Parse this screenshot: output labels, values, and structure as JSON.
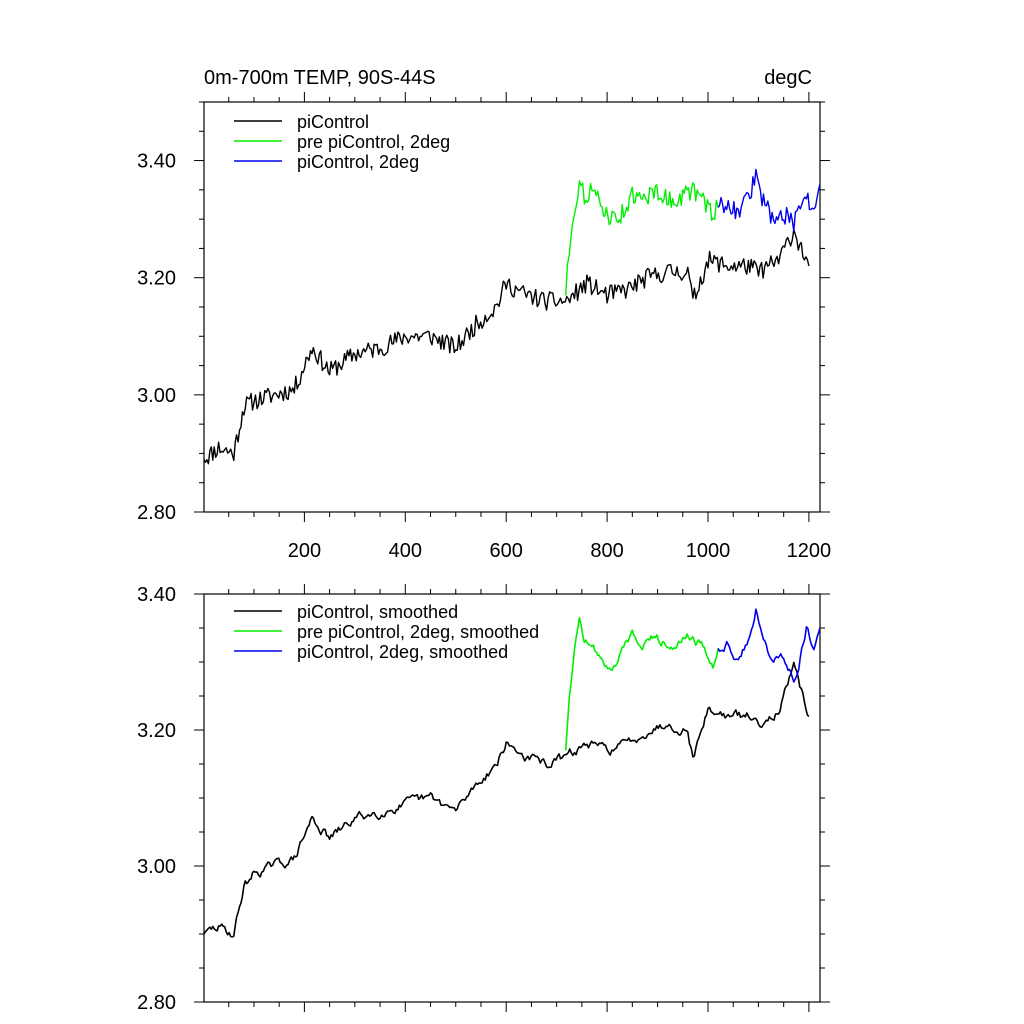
{
  "chart_data": [
    {
      "type": "line",
      "title_left": "0m-700m TEMP, 90S-44S",
      "title_right": "degC",
      "xlim": [
        1,
        1222
      ],
      "ylim": [
        2.8,
        3.5
      ],
      "xticks": [
        200,
        400,
        600,
        800,
        1000,
        1200
      ],
      "xtick_labels": [
        "200",
        "400",
        "600",
        "800",
        "1000",
        "1200"
      ],
      "yticks": [
        2.8,
        3.0,
        3.2,
        3.4
      ],
      "ytick_labels": [
        "2.80",
        "3.00",
        "3.20",
        "3.40"
      ],
      "legend_position": "top-left",
      "series": [
        {
          "name": "piControl",
          "color": "#000000",
          "x": [
            1,
            30,
            60,
            80,
            100,
            140,
            180,
            215,
            250,
            300,
            350,
            400,
            450,
            500,
            540,
            580,
            600,
            640,
            680,
            720,
            760,
            800,
            840,
            880,
            920,
            960,
            970,
            1000,
            1040,
            1080,
            1100,
            1140,
            1170,
            1200
          ],
          "values": [
            2.89,
            2.91,
            2.9,
            2.98,
            2.99,
            3.0,
            3.01,
            3.08,
            3.04,
            3.07,
            3.08,
            3.1,
            3.1,
            3.08,
            3.12,
            3.15,
            3.19,
            3.17,
            3.16,
            3.16,
            3.19,
            3.17,
            3.18,
            3.2,
            3.21,
            3.21,
            3.16,
            3.23,
            3.22,
            3.22,
            3.21,
            3.23,
            3.28,
            3.22
          ]
        },
        {
          "name": "pre piControl, 2deg",
          "color": "#00ee00",
          "x": [
            718,
            725,
            735,
            745,
            755,
            770,
            790,
            810,
            830,
            850,
            870,
            890,
            910,
            930,
            950,
            970,
            990,
            1010,
            1020
          ],
          "values": [
            3.17,
            3.25,
            3.32,
            3.36,
            3.34,
            3.35,
            3.32,
            3.3,
            3.31,
            3.34,
            3.33,
            3.35,
            3.34,
            3.33,
            3.34,
            3.35,
            3.33,
            3.31,
            3.32
          ]
        },
        {
          "name": "piControl, 2deg",
          "color": "#0000ee",
          "x": [
            1020,
            1040,
            1060,
            1080,
            1095,
            1110,
            1130,
            1150,
            1170,
            1180,
            1195,
            1210,
            1222
          ],
          "values": [
            3.32,
            3.33,
            3.31,
            3.34,
            3.37,
            3.33,
            3.3,
            3.31,
            3.29,
            3.31,
            3.34,
            3.31,
            3.36
          ]
        }
      ]
    },
    {
      "type": "line",
      "xlim": [
        1,
        1222
      ],
      "ylim": [
        2.8,
        3.4
      ],
      "xticks": [
        200,
        400,
        600,
        800,
        1000,
        1200
      ],
      "yticks": [
        2.8,
        3.0,
        3.2,
        3.4
      ],
      "ytick_labels": [
        "2.80",
        "3.00",
        "3.20",
        "3.40"
      ],
      "legend_position": "top-left",
      "series": [
        {
          "name": "piControl, smoothed",
          "color": "#000000",
          "x": [
            1,
            30,
            60,
            80,
            100,
            140,
            180,
            215,
            250,
            300,
            350,
            400,
            450,
            500,
            540,
            580,
            600,
            640,
            680,
            720,
            760,
            800,
            840,
            880,
            920,
            960,
            970,
            1000,
            1040,
            1080,
            1100,
            1140,
            1170,
            1200
          ],
          "values": [
            2.9,
            2.91,
            2.9,
            2.97,
            2.99,
            3.0,
            3.01,
            3.07,
            3.04,
            3.07,
            3.08,
            3.09,
            3.1,
            3.08,
            3.12,
            3.15,
            3.18,
            3.16,
            3.15,
            3.16,
            3.18,
            3.17,
            3.18,
            3.2,
            3.21,
            3.2,
            3.16,
            3.23,
            3.22,
            3.22,
            3.21,
            3.23,
            3.29,
            3.22
          ]
        },
        {
          "name": "pre piControl, 2deg, smoothed",
          "color": "#00ee00",
          "x": [
            718,
            725,
            735,
            745,
            755,
            770,
            790,
            810,
            830,
            850,
            870,
            890,
            910,
            930,
            950,
            970,
            990,
            1010,
            1020
          ],
          "values": [
            3.17,
            3.25,
            3.32,
            3.36,
            3.33,
            3.33,
            3.3,
            3.29,
            3.32,
            3.34,
            3.33,
            3.34,
            3.33,
            3.33,
            3.34,
            3.34,
            3.32,
            3.3,
            3.32
          ]
        },
        {
          "name": "piControl, 2deg, smoothed",
          "color": "#0000ee",
          "x": [
            1020,
            1040,
            1060,
            1080,
            1095,
            1110,
            1130,
            1150,
            1170,
            1180,
            1195,
            1210,
            1222
          ],
          "values": [
            3.32,
            3.33,
            3.3,
            3.33,
            3.38,
            3.33,
            3.3,
            3.31,
            3.28,
            3.3,
            3.35,
            3.32,
            3.35
          ]
        }
      ]
    }
  ]
}
